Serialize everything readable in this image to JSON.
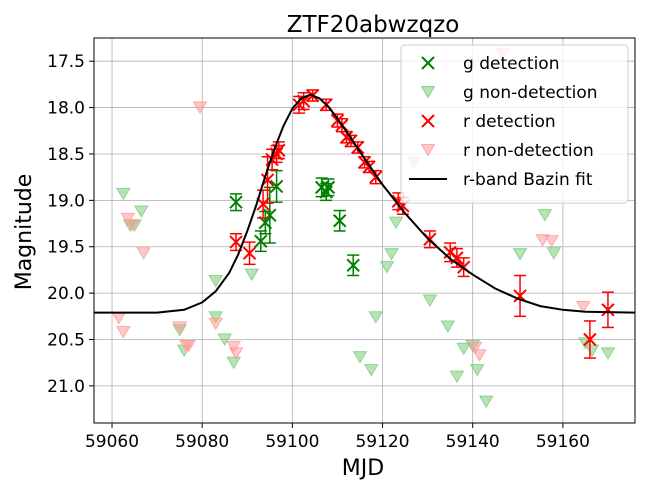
{
  "chart_data": {
    "type": "scatter",
    "title": "ZTF20abwzqzo",
    "xlabel": "MJD",
    "ylabel": "Magnitude",
    "xlim": [
      59056,
      59176
    ],
    "ylim": [
      21.4,
      17.25
    ],
    "y_inverted": true,
    "grid": true,
    "legend_position": "upper-right",
    "xticks": [
      59060,
      59080,
      59100,
      59120,
      59140,
      59160
    ],
    "yticks": [
      17.5,
      18.0,
      18.5,
      19.0,
      19.5,
      20.0,
      20.5,
      21.0
    ],
    "colors": {
      "g_detection": "#008000",
      "g_nondetection": "#7ccc7c",
      "r_detection": "#ff0000",
      "r_nondetection": "#ff9a9a",
      "fit": "#000000"
    },
    "series": [
      {
        "name": "g detection",
        "marker": "x",
        "points": [
          {
            "x": 59087.5,
            "y": 19.02,
            "err": 0.09
          },
          {
            "x": 59093.0,
            "y": 19.44,
            "err": 0.11
          },
          {
            "x": 59094.0,
            "y": 19.24,
            "err": 0.12
          },
          {
            "x": 59095.0,
            "y": 19.16,
            "err": 0.3
          },
          {
            "x": 59096.5,
            "y": 18.85,
            "err": 0.17
          },
          {
            "x": 59106.5,
            "y": 18.86,
            "err": 0.1
          },
          {
            "x": 59107.5,
            "y": 18.91,
            "err": 0.09
          },
          {
            "x": 59108.0,
            "y": 18.86,
            "err": 0.09
          },
          {
            "x": 59110.5,
            "y": 19.22,
            "err": 0.11
          },
          {
            "x": 59113.5,
            "y": 19.7,
            "err": 0.11
          }
        ]
      },
      {
        "name": "g non-detection",
        "marker": "v",
        "points": [
          {
            "x": 59062.5,
            "y": 18.93
          },
          {
            "x": 59064.0,
            "y": 19.27
          },
          {
            "x": 59065.0,
            "y": 19.27
          },
          {
            "x": 59066.5,
            "y": 19.12
          },
          {
            "x": 59075.0,
            "y": 20.4
          },
          {
            "x": 59076.0,
            "y": 20.62
          },
          {
            "x": 59083.0,
            "y": 19.87
          },
          {
            "x": 59083.0,
            "y": 20.26
          },
          {
            "x": 59085.0,
            "y": 20.5
          },
          {
            "x": 59087.0,
            "y": 20.75
          },
          {
            "x": 59091.0,
            "y": 19.8
          },
          {
            "x": 59115.0,
            "y": 20.69
          },
          {
            "x": 59117.5,
            "y": 20.83
          },
          {
            "x": 59118.5,
            "y": 20.26
          },
          {
            "x": 59121.0,
            "y": 19.72
          },
          {
            "x": 59122.0,
            "y": 19.58
          },
          {
            "x": 59123.0,
            "y": 19.24
          },
          {
            "x": 59130.5,
            "y": 20.08
          },
          {
            "x": 59134.5,
            "y": 20.36
          },
          {
            "x": 59136.5,
            "y": 20.9
          },
          {
            "x": 59138.0,
            "y": 20.6
          },
          {
            "x": 59140.0,
            "y": 20.57
          },
          {
            "x": 59141.0,
            "y": 20.83
          },
          {
            "x": 59143.0,
            "y": 21.17
          },
          {
            "x": 59150.5,
            "y": 19.58
          },
          {
            "x": 59156.0,
            "y": 19.16
          },
          {
            "x": 59158.0,
            "y": 19.57
          },
          {
            "x": 59165.0,
            "y": 20.54
          },
          {
            "x": 59166.5,
            "y": 20.62
          },
          {
            "x": 59170.0,
            "y": 20.65
          }
        ]
      },
      {
        "name": "r detection",
        "marker": "x",
        "points": [
          {
            "x": 59087.5,
            "y": 19.45,
            "err": 0.09
          },
          {
            "x": 59090.5,
            "y": 19.57,
            "err": 0.12
          },
          {
            "x": 59093.5,
            "y": 19.04,
            "err": 0.15
          },
          {
            "x": 59094.5,
            "y": 18.78,
            "err": 0.25
          },
          {
            "x": 59095.5,
            "y": 18.56,
            "err": 0.11
          },
          {
            "x": 59096.5,
            "y": 18.5,
            "err": 0.09
          },
          {
            "x": 59097.0,
            "y": 18.46,
            "err": 0.09
          },
          {
            "x": 59101.5,
            "y": 17.97,
            "err": 0.09
          },
          {
            "x": 59102.5,
            "y": 17.93,
            "err": 0.09
          },
          {
            "x": 59104.5,
            "y": 17.87,
            "err": 0.06
          },
          {
            "x": 59107.5,
            "y": 17.97,
            "err": 0.06
          },
          {
            "x": 59110.0,
            "y": 18.14,
            "err": 0.07
          },
          {
            "x": 59111.0,
            "y": 18.19,
            "err": 0.07
          },
          {
            "x": 59112.0,
            "y": 18.32,
            "err": 0.06
          },
          {
            "x": 59113.0,
            "y": 18.36,
            "err": 0.06
          },
          {
            "x": 59114.5,
            "y": 18.43,
            "err": 0.06
          },
          {
            "x": 59116.0,
            "y": 18.59,
            "err": 0.06
          },
          {
            "x": 59117.0,
            "y": 18.64,
            "err": 0.06
          },
          {
            "x": 59118.5,
            "y": 18.75,
            "err": 0.07
          },
          {
            "x": 59123.5,
            "y": 19.01,
            "err": 0.09
          },
          {
            "x": 59124.5,
            "y": 19.06,
            "err": 0.09
          },
          {
            "x": 59130.5,
            "y": 19.42,
            "err": 0.09
          },
          {
            "x": 59135.0,
            "y": 19.56,
            "err": 0.1
          },
          {
            "x": 59136.5,
            "y": 19.62,
            "err": 0.1
          },
          {
            "x": 59138.0,
            "y": 19.72,
            "err": 0.1
          },
          {
            "x": 59150.5,
            "y": 20.03,
            "err": 0.22
          },
          {
            "x": 59166.0,
            "y": 20.5,
            "err": 0.2
          },
          {
            "x": 59170.0,
            "y": 20.18,
            "err": 0.19
          }
        ]
      },
      {
        "name": "r non-detection",
        "marker": "v",
        "points": [
          {
            "x": 59061.5,
            "y": 20.27
          },
          {
            "x": 59062.5,
            "y": 20.42
          },
          {
            "x": 59063.5,
            "y": 19.2
          },
          {
            "x": 59064.5,
            "y": 19.27
          },
          {
            "x": 59067.0,
            "y": 19.57
          },
          {
            "x": 59075.0,
            "y": 20.37
          },
          {
            "x": 59076.5,
            "y": 20.57
          },
          {
            "x": 59077.0,
            "y": 20.57
          },
          {
            "x": 59079.5,
            "y": 18.0
          },
          {
            "x": 59083.0,
            "y": 20.33
          },
          {
            "x": 59087.0,
            "y": 20.58
          },
          {
            "x": 59087.5,
            "y": 20.65
          },
          {
            "x": 59127.0,
            "y": 18.59
          },
          {
            "x": 59140.5,
            "y": 20.59
          },
          {
            "x": 59141.5,
            "y": 20.67
          },
          {
            "x": 59146.5,
            "y": 17.42
          },
          {
            "x": 59155.5,
            "y": 19.43
          },
          {
            "x": 59157.5,
            "y": 19.44
          },
          {
            "x": 59164.5,
            "y": 20.15
          }
        ]
      },
      {
        "name": "r-band Bazin fit",
        "marker": "line",
        "points": [
          {
            "x": 59056,
            "y": 20.21
          },
          {
            "x": 59070,
            "y": 20.21
          },
          {
            "x": 59076,
            "y": 20.18
          },
          {
            "x": 59080,
            "y": 20.1
          },
          {
            "x": 59083,
            "y": 19.98
          },
          {
            "x": 59086,
            "y": 19.78
          },
          {
            "x": 59088,
            "y": 19.58
          },
          {
            "x": 59090,
            "y": 19.33
          },
          {
            "x": 59092,
            "y": 19.05
          },
          {
            "x": 59094,
            "y": 18.74
          },
          {
            "x": 59096,
            "y": 18.45
          },
          {
            "x": 59098,
            "y": 18.2
          },
          {
            "x": 59100,
            "y": 18.01
          },
          {
            "x": 59102,
            "y": 17.9
          },
          {
            "x": 59104,
            "y": 17.86
          },
          {
            "x": 59106,
            "y": 17.9
          },
          {
            "x": 59108,
            "y": 17.99
          },
          {
            "x": 59110,
            "y": 18.12
          },
          {
            "x": 59113,
            "y": 18.33
          },
          {
            "x": 59116,
            "y": 18.55
          },
          {
            "x": 59120,
            "y": 18.83
          },
          {
            "x": 59125,
            "y": 19.14
          },
          {
            "x": 59130,
            "y": 19.41
          },
          {
            "x": 59135,
            "y": 19.63
          },
          {
            "x": 59140,
            "y": 19.8
          },
          {
            "x": 59145,
            "y": 19.95
          },
          {
            "x": 59150,
            "y": 20.06
          },
          {
            "x": 59155,
            "y": 20.14
          },
          {
            "x": 59160,
            "y": 20.18
          },
          {
            "x": 59165,
            "y": 20.2
          },
          {
            "x": 59176,
            "y": 20.21
          }
        ]
      }
    ],
    "legend": [
      {
        "label": "g detection",
        "series": 0
      },
      {
        "label": "g non-detection",
        "series": 1
      },
      {
        "label": "r detection",
        "series": 2
      },
      {
        "label": "r non-detection",
        "series": 3
      },
      {
        "label": "r-band Bazin fit",
        "series": 4
      }
    ]
  }
}
